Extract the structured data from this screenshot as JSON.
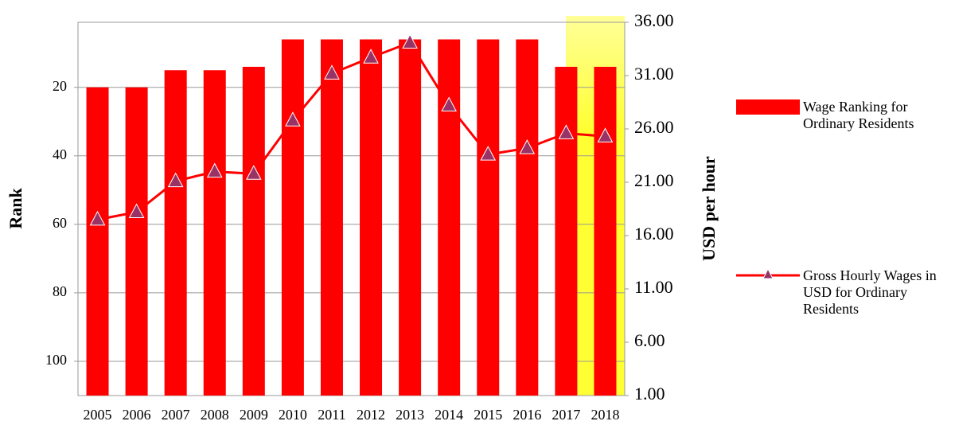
{
  "chart_data": {
    "type": "combo",
    "categories": [
      "2005",
      "2006",
      "2007",
      "2008",
      "2009",
      "2010",
      "2011",
      "2012",
      "2013",
      "2014",
      "2015",
      "2016",
      "2017",
      "2018"
    ],
    "y_label": "Rank",
    "y2_label": "USD per hour",
    "ylim": [
      1,
      110
    ],
    "y_inverted": true,
    "yticks": [
      20,
      40,
      60,
      80,
      100
    ],
    "y2lim": [
      1,
      36
    ],
    "y2ticks": [
      {
        "value": 1,
        "label": "1.00"
      },
      {
        "value": 6,
        "label": "6.00"
      },
      {
        "value": 11,
        "label": "11.00"
      },
      {
        "value": 16,
        "label": "16.00"
      },
      {
        "value": 21,
        "label": "21.00"
      },
      {
        "value": 26,
        "label": "26.00"
      },
      {
        "value": 31,
        "label": "31.00"
      },
      {
        "value": 36,
        "label": "36.00"
      }
    ],
    "grid": true,
    "series": [
      {
        "name": "Wage Ranking for Ordinary Residents",
        "type": "bar",
        "color": "#ff0000",
        "values": [
          20,
          20,
          15,
          15,
          14,
          6,
          6,
          6,
          6,
          6,
          6,
          6,
          14,
          14
        ]
      },
      {
        "name": "Gross Hourly Wages in USD for Ordinary Residents",
        "type": "line",
        "axis": "y2",
        "color": "#ff0000",
        "marker_color": "#993366",
        "values": [
          17.5,
          18.2,
          21.1,
          22.0,
          21.8,
          26.8,
          31.2,
          32.7,
          34.1,
          28.2,
          23.6,
          24.2,
          25.6,
          25.3
        ]
      }
    ]
  }
}
